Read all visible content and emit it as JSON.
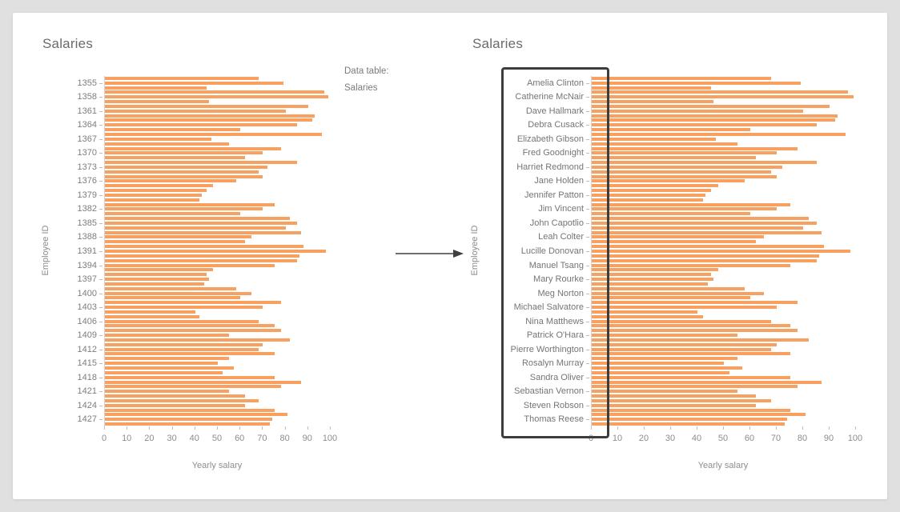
{
  "window": {
    "background": "#e0e0e0",
    "card_background": "#ffffff"
  },
  "middle": {
    "data_table_label": "Data table:",
    "data_table_name": "Salaries"
  },
  "chart_data": [
    {
      "type": "bar",
      "orientation": "horizontal",
      "title": "Salaries",
      "xlabel": "Yearly salary",
      "ylabel": "Employee ID",
      "xlim": [
        0,
        100
      ],
      "x_ticks": [
        0,
        10,
        20,
        30,
        40,
        50,
        60,
        70,
        80,
        90,
        100
      ],
      "grid": false,
      "legend": "none",
      "bar_color": "#f7a05f",
      "bars_per_label": 3,
      "y_tick_labels": [
        "1355",
        "1358",
        "1361",
        "1364",
        "1367",
        "1370",
        "1373",
        "1376",
        "1379",
        "1382",
        "1385",
        "1388",
        "1391",
        "1394",
        "1397",
        "1400",
        "1403",
        "1406",
        "1409",
        "1412",
        "1415",
        "1418",
        "1421",
        "1424",
        "1427"
      ],
      "values": [
        68,
        79,
        45,
        97,
        99,
        46,
        90,
        80,
        93,
        92,
        85,
        60,
        96,
        47,
        55,
        78,
        70,
        62,
        85,
        72,
        68,
        70,
        58,
        48,
        45,
        43,
        42,
        75,
        70,
        60,
        82,
        85,
        80,
        87,
        65,
        62,
        88,
        98,
        86,
        85,
        75,
        48,
        45,
        46,
        44,
        58,
        65,
        60,
        78,
        70,
        40,
        42,
        68,
        75,
        78,
        55,
        82,
        70,
        68,
        75,
        55,
        50,
        57,
        52,
        75,
        87,
        78,
        55,
        62,
        68,
        62,
        75,
        81,
        74,
        73
      ]
    },
    {
      "type": "bar",
      "orientation": "horizontal",
      "title": "Salaries",
      "xlabel": "Yearly salary",
      "ylabel": "Employee ID",
      "xlim": [
        0,
        100
      ],
      "x_ticks": [
        0,
        10,
        20,
        30,
        40,
        50,
        60,
        70,
        80,
        90,
        100
      ],
      "grid": false,
      "legend": "none",
      "bar_color": "#f7a05f",
      "bars_per_label": 3,
      "labels_highlighted": true,
      "y_tick_labels": [
        "Amelia Clinton",
        "Catherine McNair",
        "Dave Hallmark",
        "Debra Cusack",
        "Elizabeth Gibson",
        "Fred Goodnight",
        "Harriet Redmond",
        "Jane Holden",
        "Jennifer Patton",
        "Jim Vincent",
        "John Capotlio",
        "Leah Colter",
        "Lucille Donovan",
        "Manuel Tsang",
        "Mary Rourke",
        "Meg Norton",
        "Michael Salvatore",
        "Nina Matthews",
        "Patrick O'Hara",
        "Pierre Worthington",
        "Rosalyn Murray",
        "Sandra Oliver",
        "Sebastian Vernon",
        "Steven Robson",
        "Thomas Reese"
      ],
      "values": [
        68,
        79,
        45,
        97,
        99,
        46,
        90,
        80,
        93,
        92,
        85,
        60,
        96,
        47,
        55,
        78,
        70,
        62,
        85,
        72,
        68,
        70,
        58,
        48,
        45,
        43,
        42,
        75,
        70,
        60,
        82,
        85,
        80,
        87,
        65,
        62,
        88,
        98,
        86,
        85,
        75,
        48,
        45,
        46,
        44,
        58,
        65,
        60,
        78,
        70,
        40,
        42,
        68,
        75,
        78,
        55,
        82,
        70,
        68,
        75,
        55,
        50,
        57,
        52,
        75,
        87,
        78,
        55,
        62,
        68,
        62,
        75,
        81,
        74,
        73
      ]
    }
  ]
}
